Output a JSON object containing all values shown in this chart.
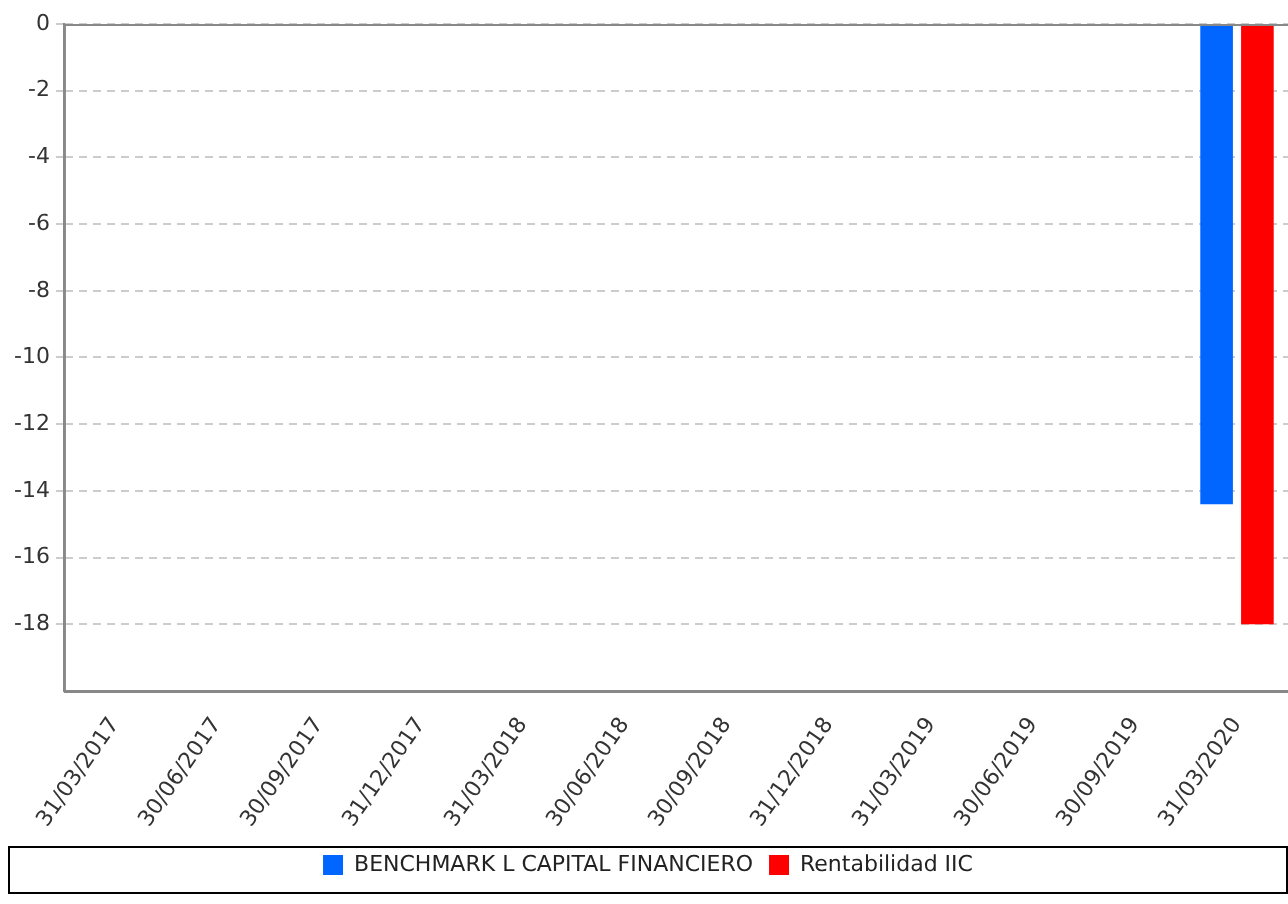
{
  "chart_data": {
    "type": "bar",
    "categories": [
      "31/03/2017",
      "30/06/2017",
      "30/09/2017",
      "31/12/2017",
      "31/03/2018",
      "30/06/2018",
      "30/09/2018",
      "31/12/2018",
      "31/03/2019",
      "30/06/2019",
      "30/09/2019",
      "31/03/2020"
    ],
    "series": [
      {
        "name": "BENCHMARK L CAPITAL FINANCIERO",
        "color": "#0066ff",
        "values": [
          null,
          null,
          null,
          null,
          null,
          null,
          null,
          null,
          null,
          null,
          null,
          -14.4
        ]
      },
      {
        "name": "Rentabilidad IIC",
        "color": "#ff0000",
        "values": [
          null,
          null,
          null,
          null,
          null,
          null,
          null,
          null,
          null,
          null,
          null,
          -18
        ]
      }
    ],
    "ylim": [
      -20,
      0
    ],
    "yticks": [
      0,
      -2,
      -4,
      -6,
      -8,
      -10,
      -12,
      -14,
      -16,
      -18
    ],
    "grid": "y",
    "legend": "bottom"
  }
}
